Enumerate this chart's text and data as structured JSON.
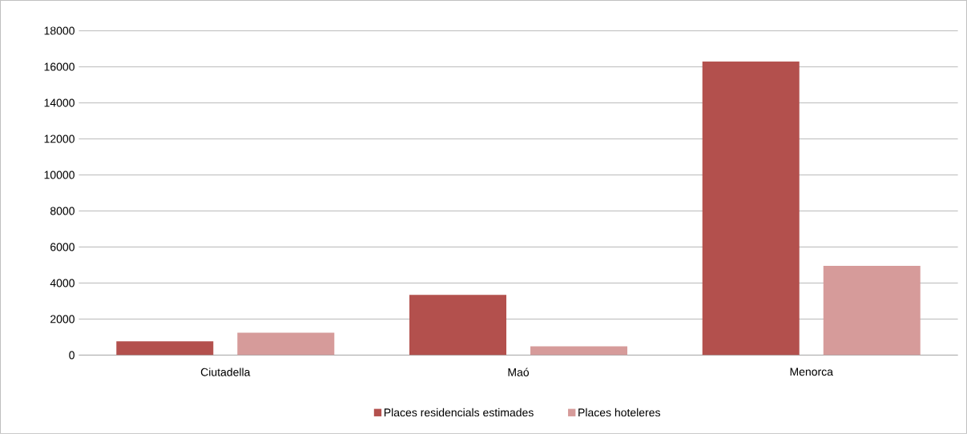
{
  "chart_data": {
    "type": "bar",
    "categories": [
      "Ciutadella",
      "Maó",
      "Menorca"
    ],
    "series": [
      {
        "name": "Places residencials estimades",
        "color": "#b3504d",
        "values": [
          760,
          3340,
          16300
        ]
      },
      {
        "name": "Places hoteleres",
        "color": "#d69b9a",
        "values": [
          1240,
          490,
          4950
        ]
      }
    ],
    "ylim": [
      0,
      18000
    ],
    "yticks": [
      0,
      2000,
      4000,
      6000,
      8000,
      10000,
      12000,
      14000,
      16000,
      18000
    ],
    "grid": "y",
    "legend": "bottom"
  }
}
